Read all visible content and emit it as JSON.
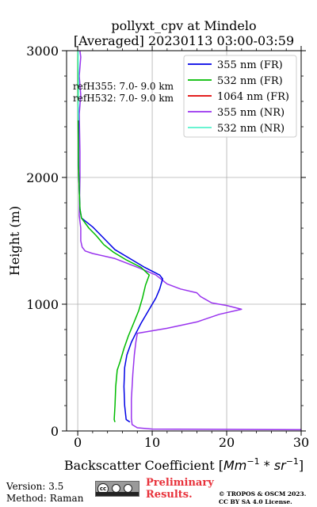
{
  "chart_data": {
    "type": "line",
    "title_line1": "pollyxt_cpv at Mindelo",
    "title_line2": "[Averaged] 20230113 03:00-03:59",
    "xlabel_text": "Backscatter Coefficient [",
    "xlabel_math": "Mm",
    "xlabel_sup1": "−1",
    "xlabel_mid": " * ",
    "xlabel_math2": "sr",
    "xlabel_sup2": "−1",
    "xlabel_end": "]",
    "ylabel": "Height (m)",
    "xlim": [
      -1.5,
      30
    ],
    "ylim": [
      0,
      3000
    ],
    "xticks": [
      0,
      10,
      20,
      30
    ],
    "xtick_labels": [
      "0",
      "10",
      "20",
      "30"
    ],
    "yticks": [
      0,
      1000,
      2000,
      3000
    ],
    "ytick_labels": [
      "0",
      "1000",
      "2000",
      "3000"
    ],
    "grid": true,
    "legend_position": "top-right",
    "annotations": [
      "refH355:  7.0- 9.0 km",
      "refH532:  7.0- 9.0 km"
    ],
    "series": [
      {
        "name": "355 nm (FR)",
        "color": "#0000e6",
        "points": [
          [
            7,
            70
          ],
          [
            6.5,
            90
          ],
          [
            6.3,
            200
          ],
          [
            6.2,
            350
          ],
          [
            6.3,
            500
          ],
          [
            6.6,
            600
          ],
          [
            7.2,
            700
          ],
          [
            7.8,
            770
          ],
          [
            8.5,
            850
          ],
          [
            9.5,
            950
          ],
          [
            10.5,
            1050
          ],
          [
            11,
            1120
          ],
          [
            11.4,
            1200
          ],
          [
            11,
            1230
          ],
          [
            9,
            1290
          ],
          [
            7,
            1360
          ],
          [
            5,
            1430
          ],
          [
            4,
            1490
          ],
          [
            3,
            1550
          ],
          [
            2,
            1610
          ],
          [
            0.5,
            1680
          ],
          [
            0.3,
            1750
          ],
          [
            0.2,
            1900
          ],
          [
            0.1,
            2100
          ],
          [
            0.1,
            2400
          ],
          [
            0.05,
            2700
          ],
          [
            0.05,
            3000
          ]
        ]
      },
      {
        "name": "532 nm (FR)",
        "color": "#00bb00",
        "points": [
          [
            5,
            70
          ],
          [
            4.9,
            90
          ],
          [
            5,
            200
          ],
          [
            5.1,
            350
          ],
          [
            5.3,
            480
          ],
          [
            5.7,
            550
          ],
          [
            6.2,
            650
          ],
          [
            6.8,
            750
          ],
          [
            7.5,
            850
          ],
          [
            8.2,
            950
          ],
          [
            8.7,
            1050
          ],
          [
            9.1,
            1150
          ],
          [
            9.6,
            1230
          ],
          [
            8.5,
            1290
          ],
          [
            6.5,
            1350
          ],
          [
            4.8,
            1410
          ],
          [
            3.5,
            1470
          ],
          [
            2.5,
            1540
          ],
          [
            1.5,
            1600
          ],
          [
            0.5,
            1680
          ],
          [
            0.3,
            1750
          ],
          [
            0.2,
            1900
          ],
          [
            0.1,
            2100
          ],
          [
            0.05,
            2400
          ],
          [
            0.02,
            2700
          ],
          [
            0.02,
            3000
          ]
        ]
      },
      {
        "name": "1064 nm (FR)",
        "color": "#e00000",
        "points": []
      },
      {
        "name": "355 nm (NR)",
        "color": "#9933ee",
        "points": [
          [
            30,
            10
          ],
          [
            10,
            15
          ],
          [
            8,
            25
          ],
          [
            7.3,
            50
          ],
          [
            7.2,
            100
          ],
          [
            7.2,
            250
          ],
          [
            7.4,
            450
          ],
          [
            7.6,
            600
          ],
          [
            7.8,
            700
          ],
          [
            8,
            770
          ],
          [
            12,
            810
          ],
          [
            16,
            860
          ],
          [
            19,
            920
          ],
          [
            22,
            960
          ],
          [
            20,
            990
          ],
          [
            18,
            1010
          ],
          [
            16.5,
            1060
          ],
          [
            16,
            1090
          ],
          [
            13.8,
            1120
          ],
          [
            12,
            1160
          ],
          [
            10.5,
            1230
          ],
          [
            8.5,
            1280
          ],
          [
            5,
            1360
          ],
          [
            2,
            1400
          ],
          [
            1,
            1420
          ],
          [
            0.6,
            1450
          ],
          [
            0.4,
            1500
          ],
          [
            0.4,
            1600
          ],
          [
            0.2,
            1700
          ],
          [
            0.3,
            2000
          ],
          [
            0.3,
            2200
          ],
          [
            0.2,
            2500
          ],
          [
            0.4,
            2650
          ],
          [
            0.2,
            2800
          ],
          [
            0.4,
            2950
          ],
          [
            0.3,
            3000
          ]
        ]
      },
      {
        "name": "532 nm (NR)",
        "color": "#55f2cc",
        "points": [
          [
            0.1,
            2450
          ],
          [
            0.05,
            2550
          ],
          [
            0.1,
            2650
          ],
          [
            0.1,
            2800
          ],
          [
            0.05,
            3000
          ]
        ]
      }
    ]
  },
  "footer": {
    "version": "Version: 3.5",
    "method": "Method: Raman",
    "cc_label": "cc",
    "preliminary_line1": "Preliminary",
    "preliminary_line2": "Results.",
    "copyright_line1": "© TROPOS & OSCM 2023.",
    "copyright_line2": "CC BY SA 4.0 License."
  }
}
